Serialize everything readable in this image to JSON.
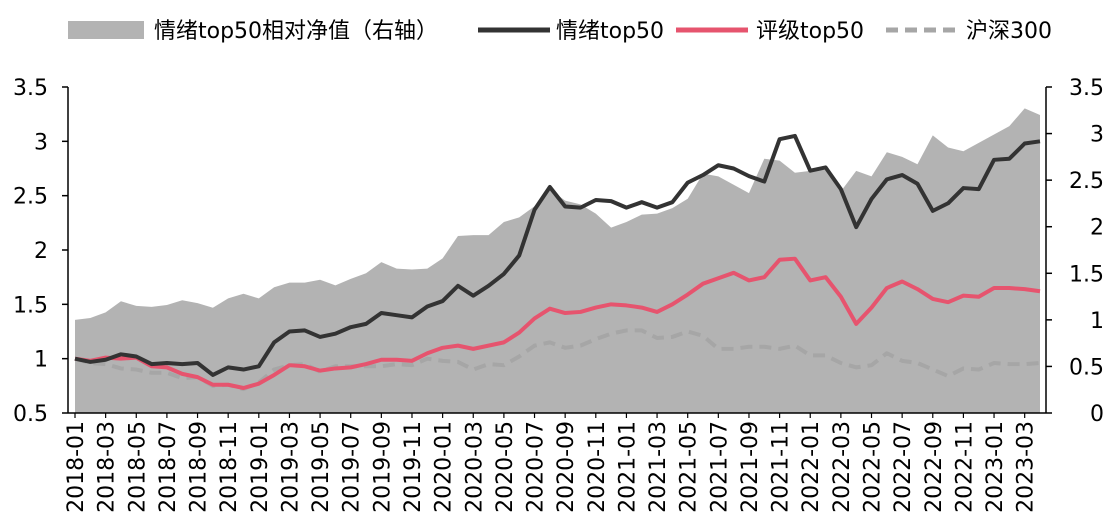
{
  "chart_data": {
    "type": "line",
    "legend": {
      "placement": "top",
      "items": [
        {
          "key": "nav",
          "label": "情绪top50相对净值（右轴）",
          "style": "area",
          "color": "#b3b3b3"
        },
        {
          "key": "sentiment",
          "label": "情绪top50",
          "style": "line",
          "color": "#333333"
        },
        {
          "key": "rating",
          "label": "评级top50",
          "style": "line",
          "color": "#e6546e"
        },
        {
          "key": "hs300",
          "label": "沪深300",
          "style": "dashed",
          "color": "#a6a6a6"
        }
      ]
    },
    "left_axis": {
      "ylim": [
        0.5,
        3.5
      ],
      "ticks": [
        "0.5",
        "1",
        "1.5",
        "2",
        "2.5",
        "3",
        "3.5"
      ]
    },
    "right_axis": {
      "ylim": [
        0,
        3.5
      ],
      "ticks": [
        "0",
        "0.5",
        "1",
        "1.5",
        "2",
        "2.5",
        "3",
        "3.5"
      ]
    },
    "x": [
      "2018-01",
      "2018-02",
      "2018-03",
      "2018-04",
      "2018-05",
      "2018-06",
      "2018-07",
      "2018-08",
      "2018-09",
      "2018-10",
      "2018-11",
      "2018-12",
      "2019-01",
      "2019-02",
      "2019-03",
      "2019-04",
      "2019-05",
      "2019-06",
      "2019-07",
      "2019-08",
      "2019-09",
      "2019-10",
      "2019-11",
      "2019-12",
      "2020-01",
      "2020-02",
      "2020-03",
      "2020-04",
      "2020-05",
      "2020-06",
      "2020-07",
      "2020-08",
      "2020-09",
      "2020-10",
      "2020-11",
      "2020-12",
      "2021-01",
      "2021-02",
      "2021-03",
      "2021-04",
      "2021-05",
      "2021-06",
      "2021-07",
      "2021-08",
      "2021-09",
      "2021-10",
      "2021-11",
      "2021-12",
      "2022-01",
      "2022-02",
      "2022-03",
      "2022-04",
      "2022-05",
      "2022-06",
      "2022-07",
      "2022-08",
      "2022-09",
      "2022-10",
      "2022-11",
      "2022-12",
      "2023-01",
      "2023-02",
      "2023-03",
      "2023-04"
    ],
    "x_tick_labels": [
      "2018-01",
      "2018-03",
      "2018-05",
      "2018-07",
      "2018-09",
      "2018-11",
      "2019-01",
      "2019-03",
      "2019-05",
      "2019-07",
      "2019-09",
      "2019-11",
      "2020-01",
      "2020-03",
      "2020-05",
      "2020-07",
      "2020-09",
      "2020-11",
      "2021-01",
      "2021-03",
      "2021-05",
      "2021-07",
      "2021-09",
      "2021-11",
      "2022-01",
      "2022-03",
      "2022-05",
      "2022-07",
      "2022-09",
      "2022-11",
      "2023-01",
      "2023-03"
    ],
    "series": [
      {
        "key": "nav",
        "name": "情绪top50相对净值（右轴）",
        "axis": "right",
        "values": [
          1.0,
          1.02,
          1.08,
          1.2,
          1.15,
          1.14,
          1.16,
          1.21,
          1.18,
          1.13,
          1.23,
          1.28,
          1.23,
          1.35,
          1.4,
          1.4,
          1.43,
          1.37,
          1.44,
          1.5,
          1.62,
          1.55,
          1.54,
          1.55,
          1.66,
          1.9,
          1.91,
          1.91,
          2.05,
          2.1,
          2.22,
          2.4,
          2.28,
          2.24,
          2.14,
          1.99,
          2.05,
          2.13,
          2.14,
          2.2,
          2.3,
          2.57,
          2.54,
          2.45,
          2.36,
          2.73,
          2.71,
          2.58,
          2.6,
          2.61,
          2.38,
          2.6,
          2.54,
          2.8,
          2.75,
          2.67,
          2.98,
          2.85,
          2.81,
          2.9,
          2.99,
          3.08,
          3.27,
          3.2
        ]
      },
      {
        "key": "sentiment",
        "name": "情绪top50",
        "axis": "left",
        "values": [
          1.0,
          0.97,
          0.99,
          1.04,
          1.02,
          0.95,
          0.96,
          0.95,
          0.96,
          0.85,
          0.92,
          0.9,
          0.93,
          1.15,
          1.25,
          1.26,
          1.2,
          1.23,
          1.29,
          1.32,
          1.42,
          1.4,
          1.38,
          1.48,
          1.53,
          1.67,
          1.58,
          1.67,
          1.78,
          1.95,
          2.37,
          2.58,
          2.4,
          2.39,
          2.46,
          2.45,
          2.39,
          2.44,
          2.39,
          2.44,
          2.62,
          2.69,
          2.78,
          2.75,
          2.68,
          2.63,
          3.02,
          3.05,
          2.73,
          2.76,
          2.56,
          2.21,
          2.47,
          2.65,
          2.69,
          2.61,
          2.36,
          2.43,
          2.57,
          2.56,
          2.83,
          2.84,
          2.98,
          3.0
        ]
      },
      {
        "key": "rating",
        "name": "评级top50",
        "axis": "left",
        "values": [
          1.0,
          0.98,
          1.01,
          1.0,
          1.01,
          0.93,
          0.92,
          0.86,
          0.83,
          0.76,
          0.76,
          0.73,
          0.77,
          0.85,
          0.94,
          0.93,
          0.89,
          0.91,
          0.92,
          0.95,
          0.99,
          0.99,
          0.98,
          1.05,
          1.1,
          1.12,
          1.09,
          1.12,
          1.15,
          1.24,
          1.37,
          1.46,
          1.42,
          1.43,
          1.47,
          1.5,
          1.49,
          1.47,
          1.43,
          1.5,
          1.59,
          1.69,
          1.74,
          1.79,
          1.72,
          1.75,
          1.91,
          1.92,
          1.72,
          1.75,
          1.57,
          1.32,
          1.47,
          1.65,
          1.71,
          1.64,
          1.55,
          1.52,
          1.58,
          1.57,
          1.65,
          1.65,
          1.64,
          1.62
        ]
      },
      {
        "key": "hs300",
        "name": "沪深300",
        "axis": "left",
        "values": [
          1.0,
          0.96,
          0.95,
          0.91,
          0.9,
          0.87,
          0.87,
          0.82,
          0.83,
          0.75,
          0.76,
          0.72,
          0.78,
          0.9,
          0.94,
          0.95,
          0.88,
          0.93,
          0.93,
          0.93,
          0.93,
          0.95,
          0.94,
          1.0,
          0.98,
          0.97,
          0.9,
          0.95,
          0.94,
          1.02,
          1.12,
          1.15,
          1.1,
          1.12,
          1.18,
          1.23,
          1.26,
          1.26,
          1.19,
          1.2,
          1.25,
          1.21,
          1.09,
          1.09,
          1.11,
          1.11,
          1.09,
          1.12,
          1.03,
          1.03,
          0.96,
          0.92,
          0.94,
          1.05,
          0.98,
          0.96,
          0.9,
          0.84,
          0.91,
          0.9,
          0.96,
          0.95,
          0.95,
          0.96
        ]
      }
    ]
  }
}
